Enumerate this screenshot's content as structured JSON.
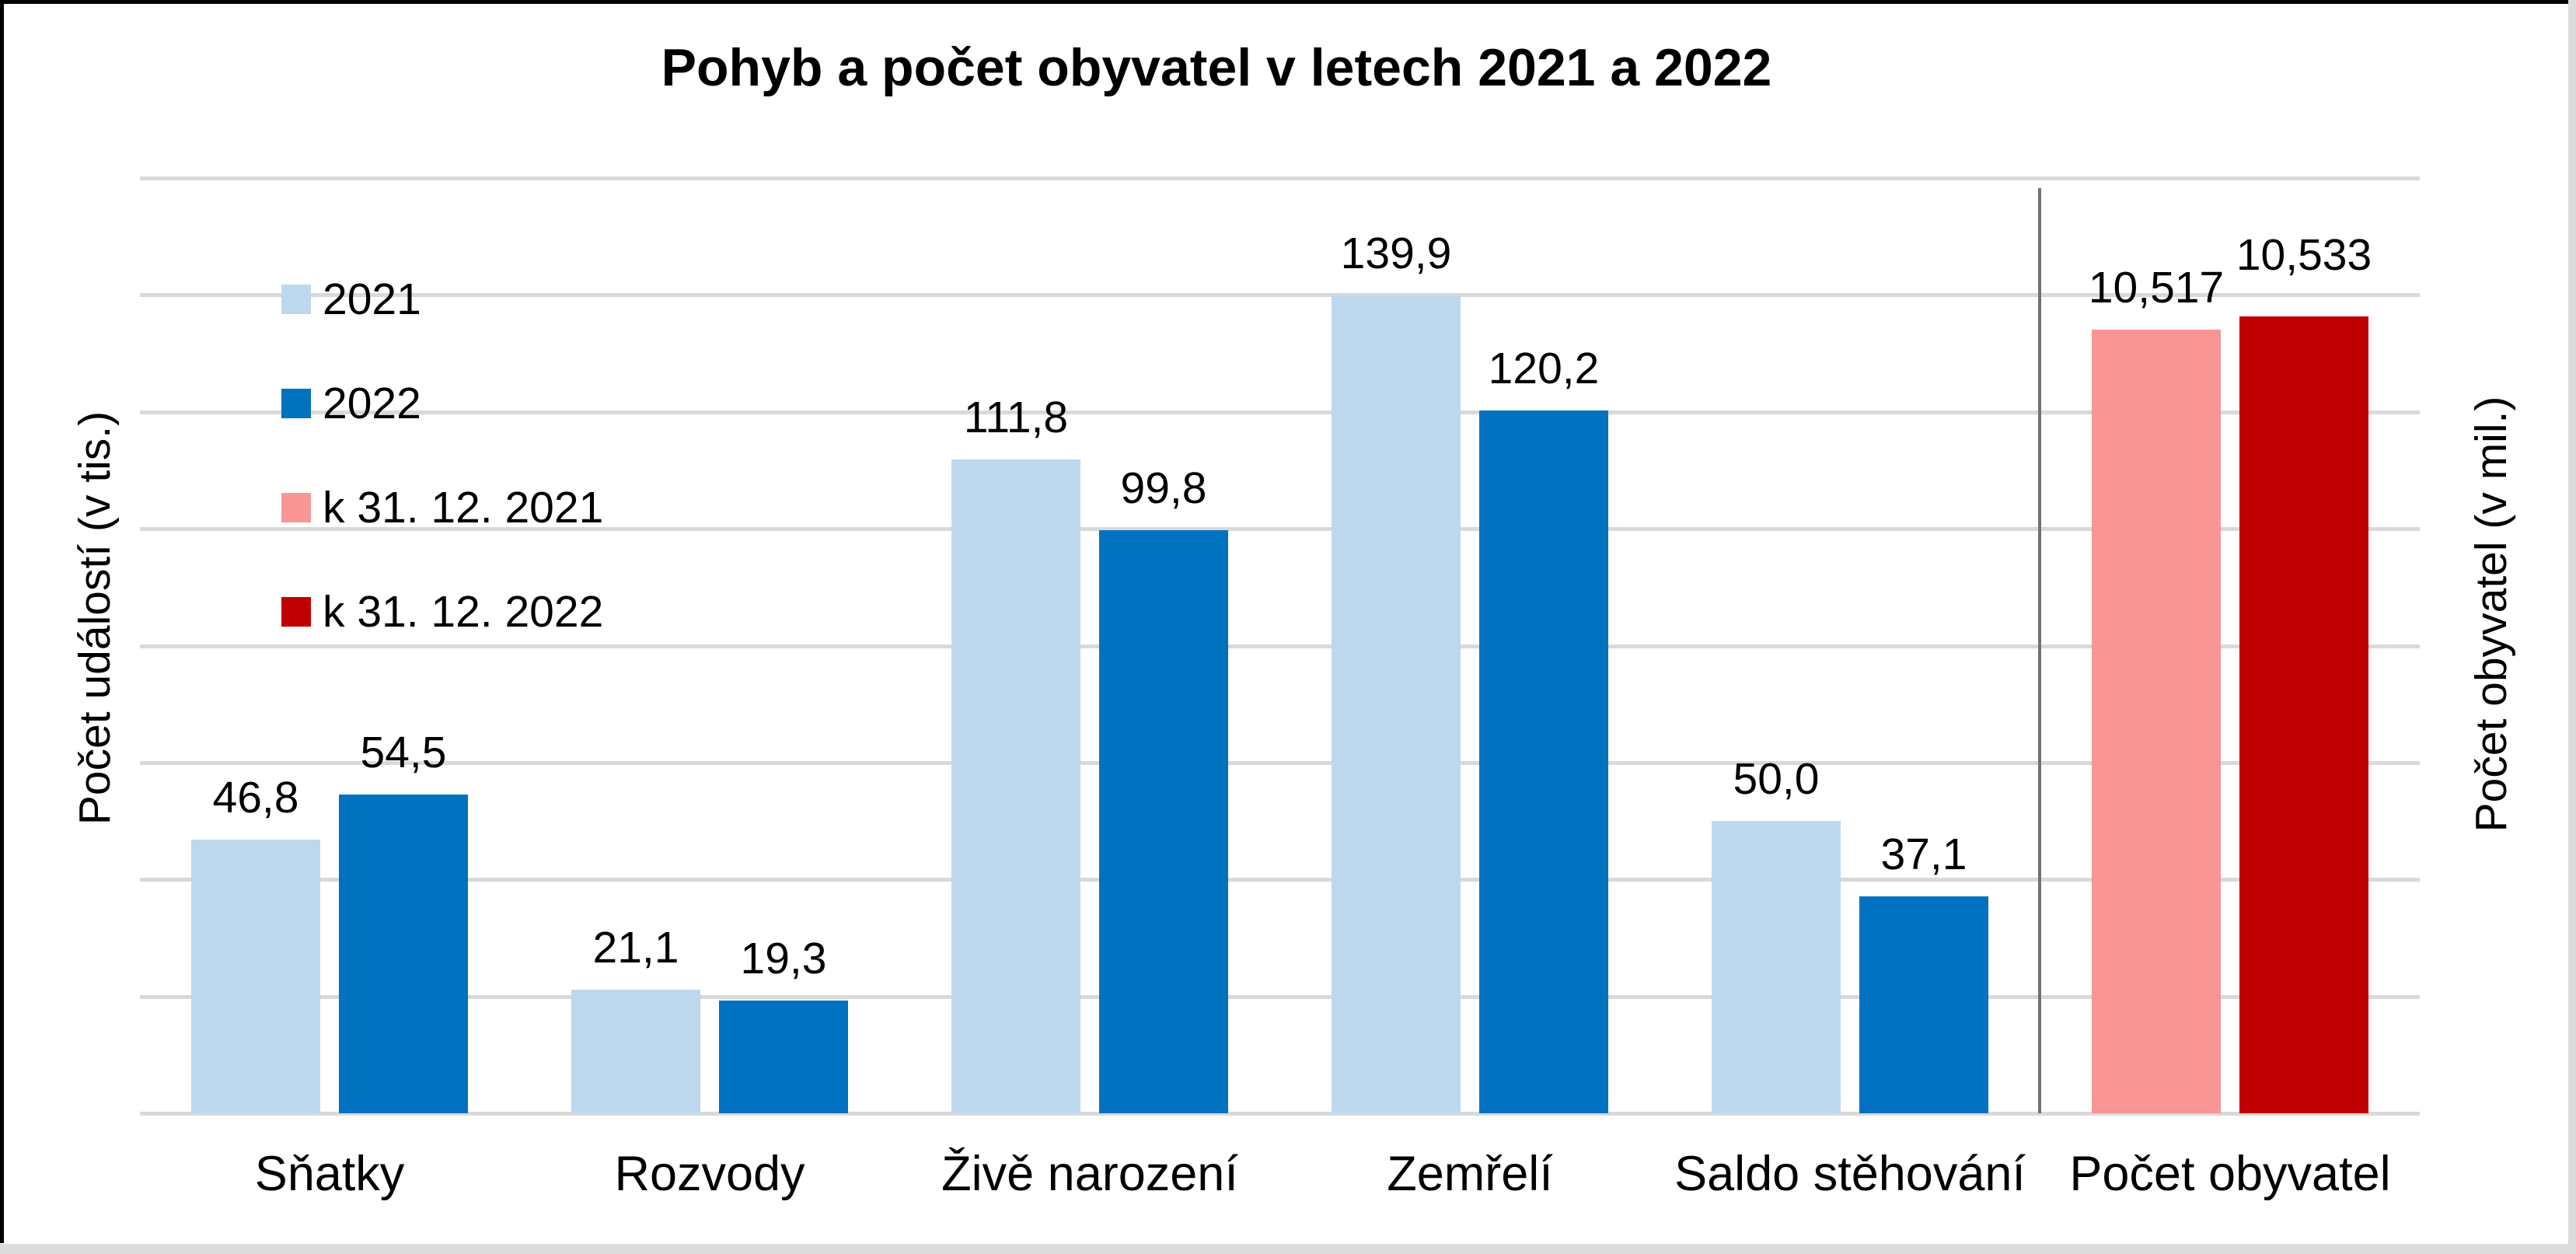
{
  "title": "Pohyb a počet obyvatel v letech 2021 a 2022",
  "axes": {
    "left_title": "Počet událostí (v tis.)",
    "right_title": "Počet obyvatel (v mil.)"
  },
  "legend": {
    "items": [
      {
        "label": "2021",
        "color": "#BDD7EE"
      },
      {
        "label": "2022",
        "color": "#0072C0"
      },
      {
        "label": "k 31. 12. 2021",
        "color": "#F89696"
      },
      {
        "label": "k 31. 12. 2022",
        "color": "#C00000"
      }
    ]
  },
  "colors": {
    "gridline": "#d9d9d9",
    "separator": "#737373",
    "frame_black": "#000000",
    "frame_gray": "#dcdcdc",
    "text": "#000000"
  },
  "chart_data": {
    "type": "bar",
    "title": "Pohyb a počet obyvatel v letech 2021 a 2022",
    "categories": [
      "Sňatky",
      "Rozvody",
      "Živě narození",
      "Zemřelí",
      "Saldo stěhování",
      "Počet obyvatel"
    ],
    "series": [
      {
        "name": "2021",
        "axis": "left",
        "color": "#BDD7EE",
        "values": [
          46.8,
          21.1,
          111.8,
          139.9,
          50.0,
          null
        ],
        "labels": [
          "46,8",
          "21,1",
          "111,8",
          "139,9",
          "50,0",
          null
        ],
        "label_gap": 25
      },
      {
        "name": "2022",
        "axis": "left",
        "color": "#0072C0",
        "values": [
          54.5,
          19.3,
          99.8,
          120.2,
          37.1,
          null
        ],
        "labels": [
          "54,5",
          "19,3",
          "99,8",
          "120,2",
          "37,1",
          null
        ],
        "label_gap": 25
      },
      {
        "name": "k 31. 12. 2021",
        "axis": "right",
        "color": "#F89696",
        "values": [
          null,
          null,
          null,
          null,
          null,
          10.517
        ],
        "labels": [
          null,
          null,
          null,
          null,
          null,
          "10,517"
        ],
        "label_gap": 25
      },
      {
        "name": "k 31. 12. 2022",
        "axis": "right",
        "color": "#C00000",
        "values": [
          null,
          null,
          null,
          null,
          null,
          10.533
        ],
        "labels": [
          null,
          null,
          null,
          null,
          null,
          "10,533"
        ],
        "label_gap": 50
      }
    ],
    "left_axis": {
      "label": "Počet událostí (v tis.)",
      "min": 0,
      "max": 160,
      "gridline_step": 20,
      "tick_labels_shown": false
    },
    "right_axis": {
      "label": "Počet obyvatel (v mil.)",
      "approx_min": 9.57,
      "approx_max": 10.7,
      "tick_labels_shown": false
    },
    "grid": "horizontal",
    "legend_position": "upper-left-inside",
    "separator_between": [
      "Saldo stěhování",
      "Počet obyvatel"
    ]
  }
}
